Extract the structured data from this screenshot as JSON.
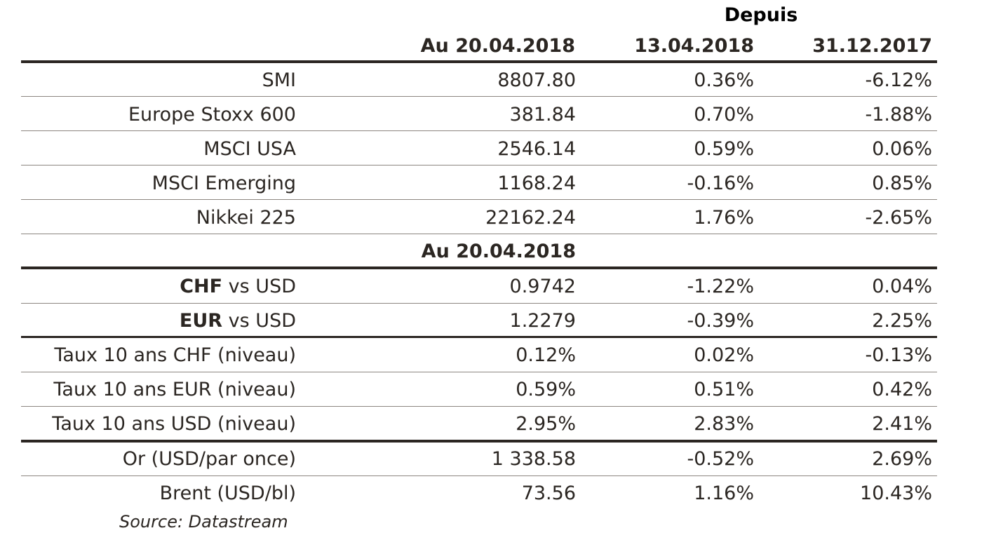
{
  "header": {
    "depuis": "Depuis",
    "col1": "Au 20.04.2018",
    "col2": "13.04.2018",
    "col3": "31.12.2017"
  },
  "indices": [
    {
      "label": "SMI",
      "value": "8807.80",
      "since_week": "0.36%",
      "since_year": "-6.12%"
    },
    {
      "label": "Europe Stoxx 600",
      "value": "381.84",
      "since_week": "0.70%",
      "since_year": "-1.88%"
    },
    {
      "label": "MSCI USA",
      "value": "2546.14",
      "since_week": "0.59%",
      "since_year": "0.06%"
    },
    {
      "label": "MSCI Emerging",
      "value": "1168.24",
      "since_week": "-0.16%",
      "since_year": "0.85%"
    },
    {
      "label": "Nikkei 225",
      "value": "22162.24",
      "since_week": "1.76%",
      "since_year": "-2.65%"
    }
  ],
  "subheader": {
    "col1": "Au 20.04.2018"
  },
  "fx": [
    {
      "label_bold": "CHF",
      "label_rest": " vs USD",
      "value": "0.9742",
      "since_week": "-1.22%",
      "since_year": "0.04%"
    },
    {
      "label_bold": "EUR",
      "label_rest": " vs USD",
      "value": "1.2279",
      "since_week": "-0.39%",
      "since_year": "2.25%"
    }
  ],
  "rates": [
    {
      "label": "Taux 10 ans CHF (niveau)",
      "value": "0.12%",
      "since_week": "0.02%",
      "since_year": "-0.13%"
    },
    {
      "label": "Taux 10 ans EUR (niveau)",
      "value": "0.59%",
      "since_week": "0.51%",
      "since_year": "0.42%"
    },
    {
      "label": "Taux 10 ans USD (niveau)",
      "value": "2.95%",
      "since_week": "2.83%",
      "since_year": "2.41%"
    }
  ],
  "commodities": [
    {
      "label": "Or (USD/par once)",
      "value": "1 338.58",
      "since_week": "-0.52%",
      "since_year": "2.69%"
    },
    {
      "label": "Brent (USD/bl)",
      "value": "73.56",
      "since_week": "1.16%",
      "since_year": "10.43%"
    }
  ],
  "source": "Source: Datastream"
}
